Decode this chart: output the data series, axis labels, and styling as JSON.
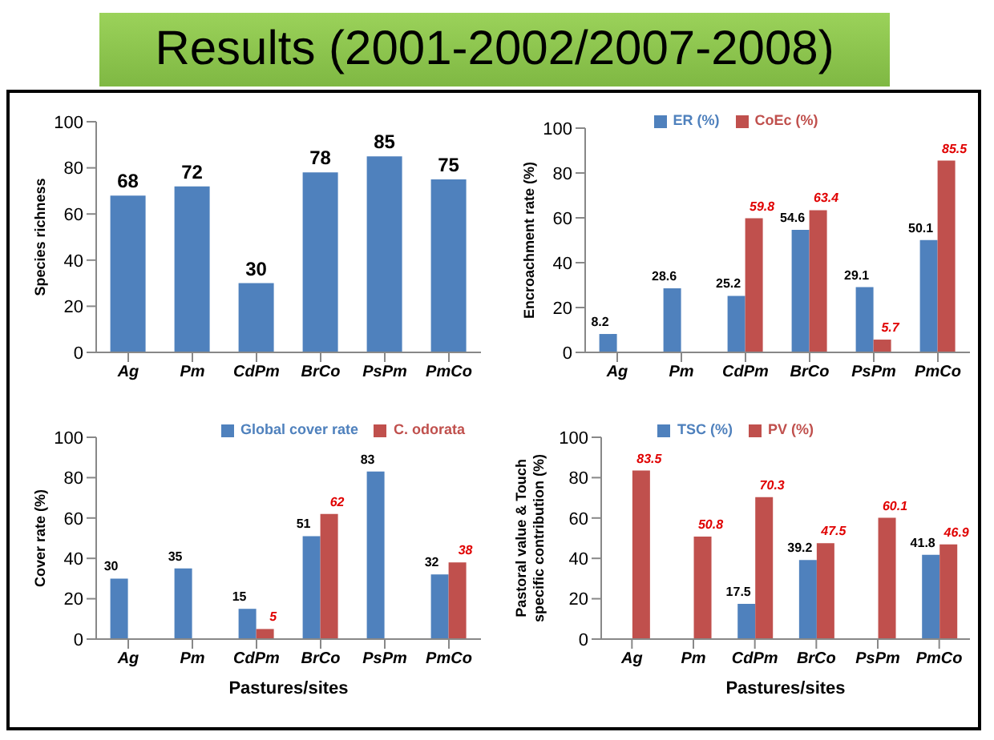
{
  "chart_data": [
    {
      "type": "other",
      "title": "Results (2001-2002/2007-2008)"
    },
    {
      "type": "bar",
      "ylabel": "Species richness",
      "categories": [
        "Ag",
        "Pm",
        "CdPm",
        "BrCo",
        "PsPm",
        "PmCo"
      ],
      "values": [
        68,
        72,
        30,
        78,
        85,
        75
      ],
      "color": "#4f81bd",
      "ylim": [
        0,
        100
      ],
      "yticks": [
        0,
        20,
        40,
        60,
        80,
        100
      ],
      "data_labels": true
    },
    {
      "type": "bar",
      "ylabel": "Encroachment rate (%)",
      "categories": [
        "Ag",
        "Pm",
        "CdPm",
        "BrCo",
        "PsPm",
        "PmCo"
      ],
      "series": [
        {
          "name": "ER (%)",
          "color": "#4f81bd",
          "values": [
            8.2,
            28.6,
            25.2,
            54.6,
            29.1,
            50.1
          ]
        },
        {
          "name": "CoEc (%)",
          "color": "#c0504d",
          "values": [
            null,
            null,
            59.8,
            63.4,
            5.7,
            85.5
          ]
        }
      ],
      "ylim": [
        0,
        100
      ],
      "yticks": [
        0,
        20,
        40,
        60,
        80,
        100
      ],
      "data_labels": true,
      "legend": "top"
    },
    {
      "type": "bar",
      "ylabel": "Cover rate (%)",
      "xlabel": "Pastures/sites",
      "categories": [
        "Ag",
        "Pm",
        "CdPm",
        "BrCo",
        "PsPm",
        "PmCo"
      ],
      "series": [
        {
          "name": "Global cover rate",
          "color": "#4f81bd",
          "values": [
            30,
            35,
            15,
            51,
            83,
            32
          ]
        },
        {
          "name": "C. odorata",
          "color": "#c0504d",
          "values": [
            null,
            null,
            5,
            62,
            null,
            38
          ]
        }
      ],
      "ylim": [
        0,
        100
      ],
      "yticks": [
        0,
        20,
        40,
        60,
        80,
        100
      ],
      "data_labels": true,
      "legend": "top right"
    },
    {
      "type": "bar",
      "ylabel": "Pastoral value & Touch specific contribution (%)",
      "xlabel": "Pastures/sites",
      "categories": [
        "Ag",
        "Pm",
        "CdPm",
        "BrCo",
        "PsPm",
        "PmCo"
      ],
      "series": [
        {
          "name": "TSC (%)",
          "color": "#4f81bd",
          "values": [
            null,
            null,
            17.5,
            39.2,
            null,
            41.8
          ]
        },
        {
          "name": "PV (%)",
          "color": "#c0504d",
          "values": [
            83.5,
            50.8,
            70.3,
            47.5,
            60.1,
            46.9
          ]
        }
      ],
      "ylim": [
        0,
        100
      ],
      "yticks": [
        0,
        20,
        40,
        60,
        80,
        100
      ],
      "data_labels": true,
      "legend": "top"
    }
  ]
}
